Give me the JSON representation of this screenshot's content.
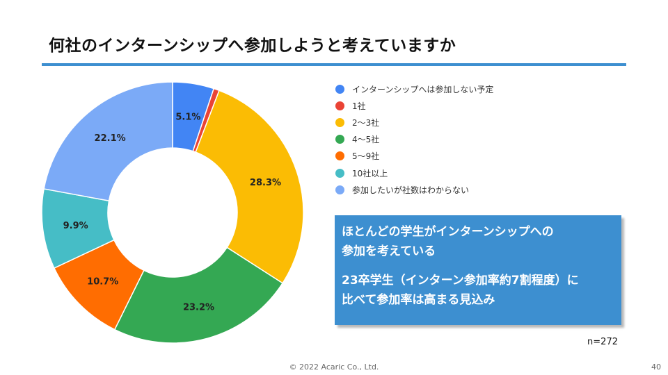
{
  "page": {
    "title": "何社のインターンシップへ参加しようと考えていますか",
    "n_label": "n=272",
    "footer": "© 2022 Acaric Co., Ltd.",
    "page_number": "40",
    "accent_color": "#3d8fd0"
  },
  "callout": {
    "line1": "ほとんどの学生がインターンシップへの",
    "line2": "参加を考えている",
    "line3": "23卒学生（インターン参加率約7割程度）に",
    "line4": "比べて参加率は高まる見込み"
  },
  "chart_data": {
    "type": "pie",
    "donut": true,
    "labels": [
      "インターンシップへは参加しない予定",
      "1社",
      "2〜3社",
      "4〜5社",
      "5〜9社",
      "10社以上",
      "参加したいが社数はわからない"
    ],
    "values": [
      5.1,
      0.7,
      28.3,
      23.2,
      10.7,
      9.9,
      22.1
    ],
    "value_labels": [
      "5.1%",
      "",
      "28.3%",
      "23.2%",
      "10.7%",
      "9.9%",
      "22.1%"
    ],
    "colors": [
      "#4285f4",
      "#ea4335",
      "#fbbc04",
      "#34a853",
      "#ff6d01",
      "#46bdc6",
      "#7baaf7"
    ],
    "legend_position": "right"
  }
}
